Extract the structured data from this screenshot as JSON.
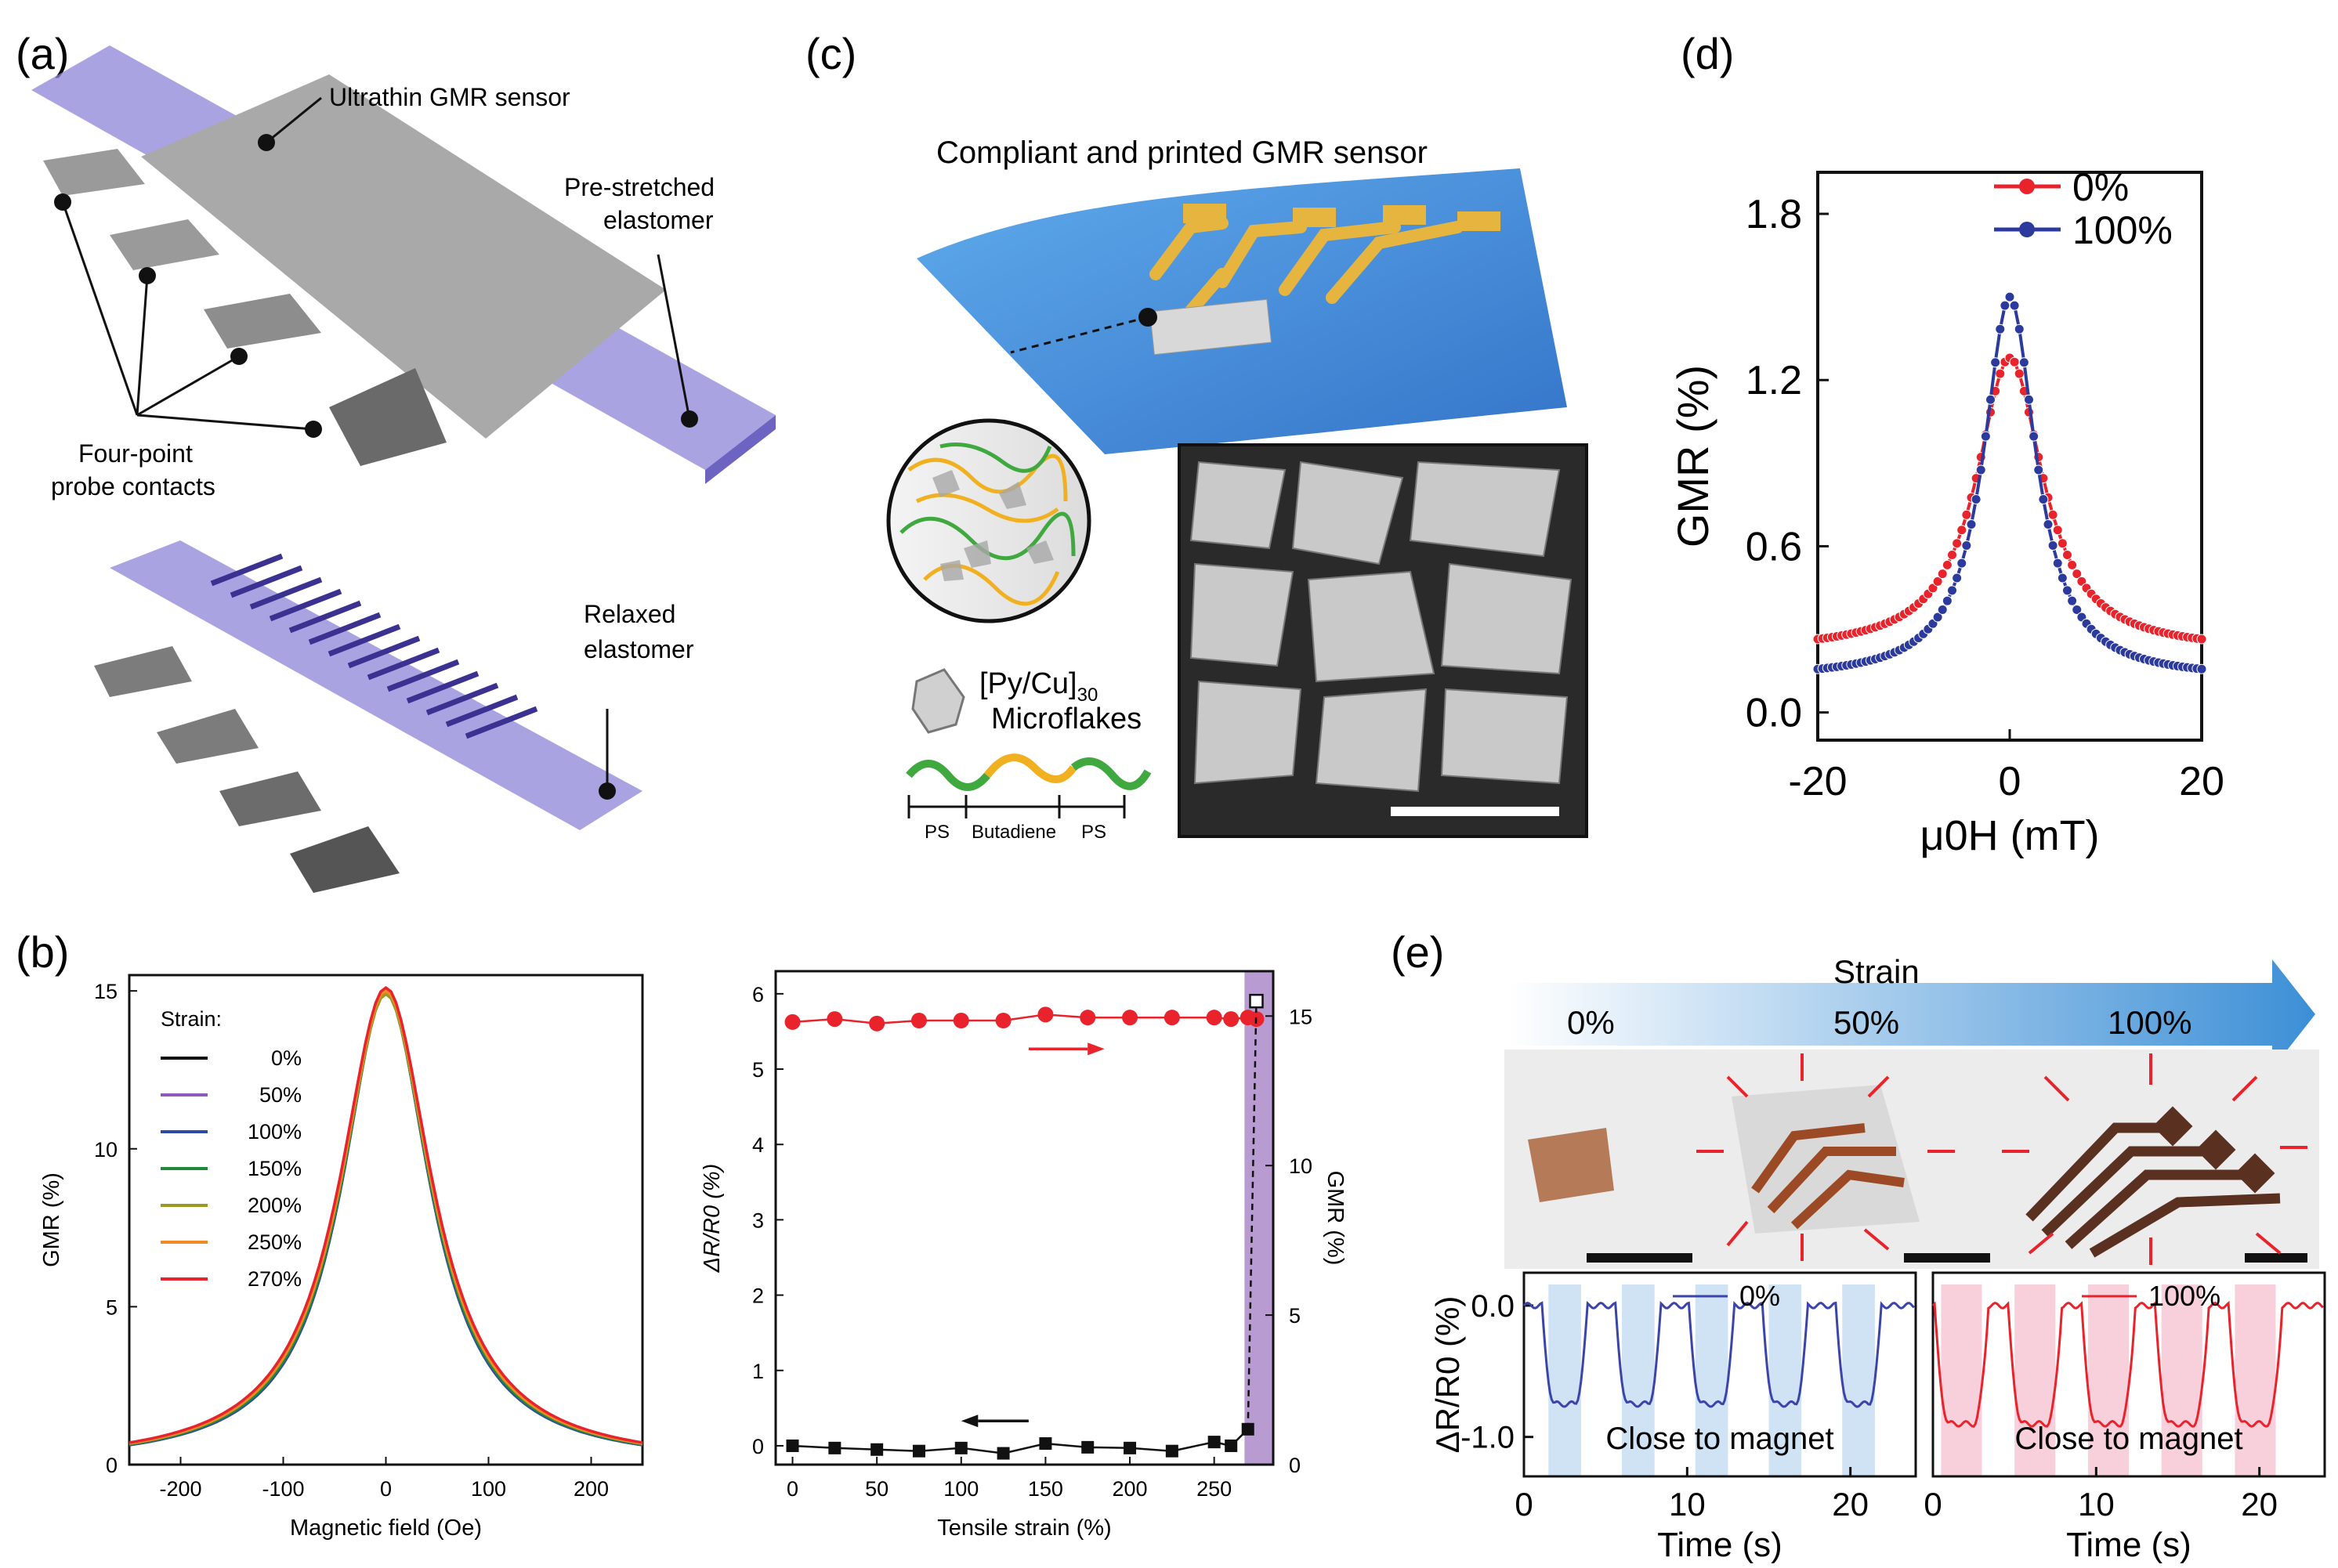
{
  "panel_labels": [
    "(a)",
    "(b)",
    "(c)",
    "(d)",
    "(e)"
  ],
  "panel_a": {
    "labels": {
      "sensor": "Ultrathin GMR sensor",
      "prestretched_1": "Pre-stretched",
      "prestretched_2": "elastomer",
      "contacts_1": "Four-point",
      "contacts_2": "probe contacts",
      "relaxed_1": "Relaxed",
      "relaxed_2": "elastomer"
    }
  },
  "panel_c": {
    "title": "Compliant and printed GMR sensor",
    "flake_label_1": "[Py/Cu]",
    "flake_label_sub": "30",
    "flake_label_2": "Microflakes",
    "polymer_segments": [
      "PS",
      "Butadiene",
      "PS"
    ]
  },
  "panel_e_photo": {
    "strain_label": "Strain",
    "levels": [
      "0%",
      "50%",
      "100%"
    ]
  },
  "colors": {
    "red": "#e8232b",
    "blue": "#2b3a9c",
    "purple_band": "#b79bd1",
    "elastomer": "#8c84d8",
    "strain_arrow": "#3c8fd6"
  },
  "chart_data": [
    {
      "id": "b-left",
      "type": "line",
      "title": "",
      "xlabel": "Magnetic field (Oe)",
      "ylabel": "GMR (%)",
      "xlim": [
        -250,
        250
      ],
      "ylim": [
        0,
        15.5
      ],
      "xticks": [
        -200,
        -100,
        0,
        100,
        200
      ],
      "yticks": [
        0,
        5,
        10,
        15
      ],
      "legend_title": "Strain:",
      "series": [
        {
          "name": "0%",
          "color": "#111111",
          "peak": 15.0,
          "width": 52
        },
        {
          "name": "50%",
          "color": "#8e5bbd",
          "peak": 15.0,
          "width": 52
        },
        {
          "name": "100%",
          "color": "#2f4aa6",
          "peak": 15.0,
          "width": 52
        },
        {
          "name": "150%",
          "color": "#1f8a3a",
          "peak": 14.9,
          "width": 53
        },
        {
          "name": "200%",
          "color": "#9b9a1e",
          "peak": 14.9,
          "width": 54
        },
        {
          "name": "250%",
          "color": "#f08a24",
          "peak": 15.0,
          "width": 54
        },
        {
          "name": "270%",
          "color": "#e8232b",
          "peak": 15.1,
          "width": 55
        }
      ]
    },
    {
      "id": "b-right",
      "type": "scatter",
      "xlabel": "Tensile strain (%)",
      "ylabel": "ΔR/R0 (%)",
      "y2label": "GMR (%)",
      "xlim": [
        -10,
        285
      ],
      "ylim": [
        -0.25,
        6.3
      ],
      "y2lim": [
        0,
        16.5
      ],
      "xticks": [
        0,
        50,
        100,
        150,
        200,
        250
      ],
      "yticks": [
        0,
        1,
        2,
        3,
        4,
        5,
        6
      ],
      "y2ticks": [
        0,
        5,
        10,
        15
      ],
      "shaded_region": [
        268,
        285
      ],
      "x": [
        0,
        25,
        50,
        75,
        100,
        125,
        150,
        175,
        200,
        225,
        250,
        260,
        270,
        275
      ],
      "series": [
        {
          "name": "ΔR/R0",
          "axis": "left",
          "color": "#111111",
          "marker": "square",
          "values": [
            0.0,
            -0.03,
            -0.05,
            -0.07,
            -0.03,
            -0.1,
            0.03,
            -0.02,
            -0.03,
            -0.07,
            0.05,
            0.0,
            0.22,
            null
          ]
        },
        {
          "name": "GMR",
          "axis": "right",
          "color": "#e8232b",
          "marker": "circle",
          "values": [
            14.8,
            14.9,
            14.75,
            14.85,
            14.85,
            14.85,
            15.05,
            14.95,
            14.95,
            14.95,
            14.95,
            14.9,
            14.95,
            14.9
          ]
        }
      ],
      "annotation_point": {
        "x": 275,
        "y2": 15.5,
        "marker": "open-square"
      }
    },
    {
      "id": "d",
      "type": "line",
      "xlabel": "μ0H (mT)",
      "ylabel": "GMR (%)",
      "xlim": [
        -20,
        20
      ],
      "ylim": [
        -0.1,
        1.95
      ],
      "xticks": [
        -20,
        0,
        20
      ],
      "yticks": [
        0.0,
        0.6,
        1.2,
        1.8
      ],
      "series": [
        {
          "name": "0%",
          "color": "#e8232b",
          "peak": 1.28,
          "base": 0.22,
          "width": 4.2
        },
        {
          "name": "100%",
          "color": "#2b3a9c",
          "peak": 1.5,
          "base": 0.12,
          "width": 3.3
        }
      ]
    },
    {
      "id": "e-0",
      "type": "line",
      "xlabel": "Time (s)",
      "ylabel": "ΔR/R0 (%)",
      "xlim": [
        0,
        24
      ],
      "ylim": [
        -1.3,
        0.25
      ],
      "xticks": [
        0,
        10,
        20
      ],
      "yticks": [
        0.0,
        -1.0
      ],
      "legend": "0%",
      "annotation": "Close to magnet",
      "color": "#3b44a8",
      "band_color": "#cfe3f5",
      "bands": [
        [
          1.5,
          3.5
        ],
        [
          6.0,
          8.0
        ],
        [
          10.5,
          12.5
        ],
        [
          15.0,
          17.0
        ],
        [
          19.5,
          21.5
        ]
      ],
      "dip": -0.75
    },
    {
      "id": "e-100",
      "type": "line",
      "xlabel": "Time (s)",
      "ylabel": "",
      "xlim": [
        0,
        24
      ],
      "ylim": [
        -1.3,
        0.25
      ],
      "xticks": [
        0,
        10,
        20
      ],
      "yticks": [],
      "legend": "100%",
      "annotation": "Close to magnet",
      "color": "#e8232b",
      "band_color": "#f8d0dc",
      "bands": [
        [
          0.5,
          3.0
        ],
        [
          5.0,
          7.5
        ],
        [
          9.5,
          12.0
        ],
        [
          14.0,
          16.5
        ],
        [
          18.5,
          21.0
        ]
      ],
      "dip": -0.9
    }
  ]
}
